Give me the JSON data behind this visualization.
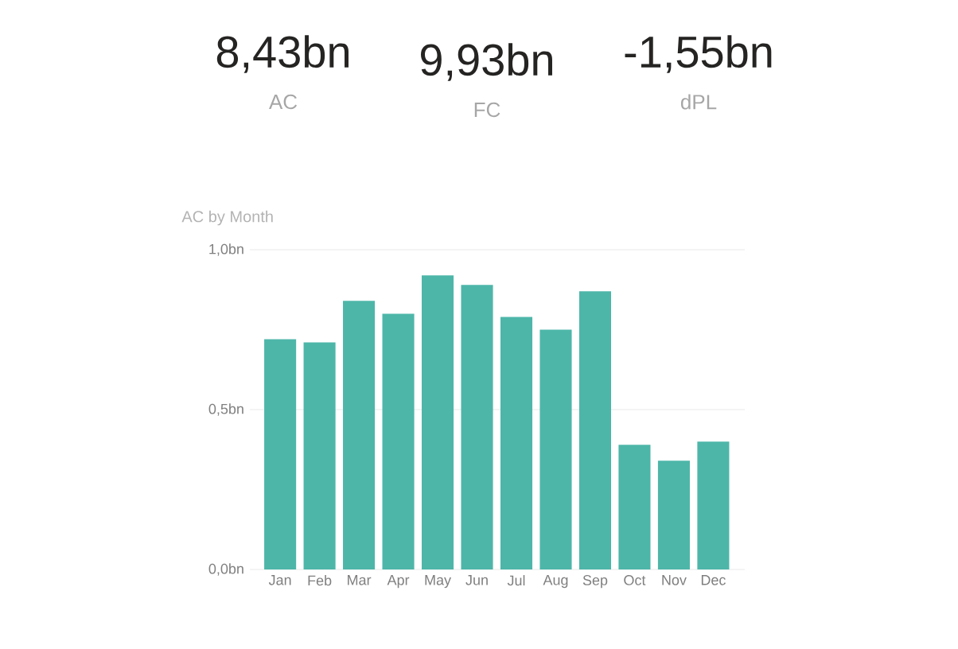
{
  "chart_data": [
    {
      "type": "other",
      "annotations": [
        "8,43bn",
        "AC",
        "9,93bn",
        "FC",
        "-1,55bn",
        "dPL"
      ]
    },
    {
      "type": "bar",
      "title": "AC by Month",
      "categories": [
        "Jan",
        "Feb",
        "Mar",
        "Apr",
        "May",
        "Jun",
        "Jul",
        "Aug",
        "Sep",
        "Oct",
        "Nov",
        "Dec"
      ],
      "values": [
        0.72,
        0.71,
        0.84,
        0.8,
        0.92,
        0.89,
        0.79,
        0.75,
        0.87,
        0.39,
        0.34,
        0.4
      ],
      "color": "#4db6a9",
      "ylim": [
        0,
        1.0
      ],
      "yticks": [
        {
          "value": 0,
          "label": "0,0bn"
        },
        {
          "value": 0.5,
          "label": "0,5bn"
        },
        {
          "value": 1.0,
          "label": "1,0bn"
        }
      ],
      "grid": "y"
    }
  ]
}
